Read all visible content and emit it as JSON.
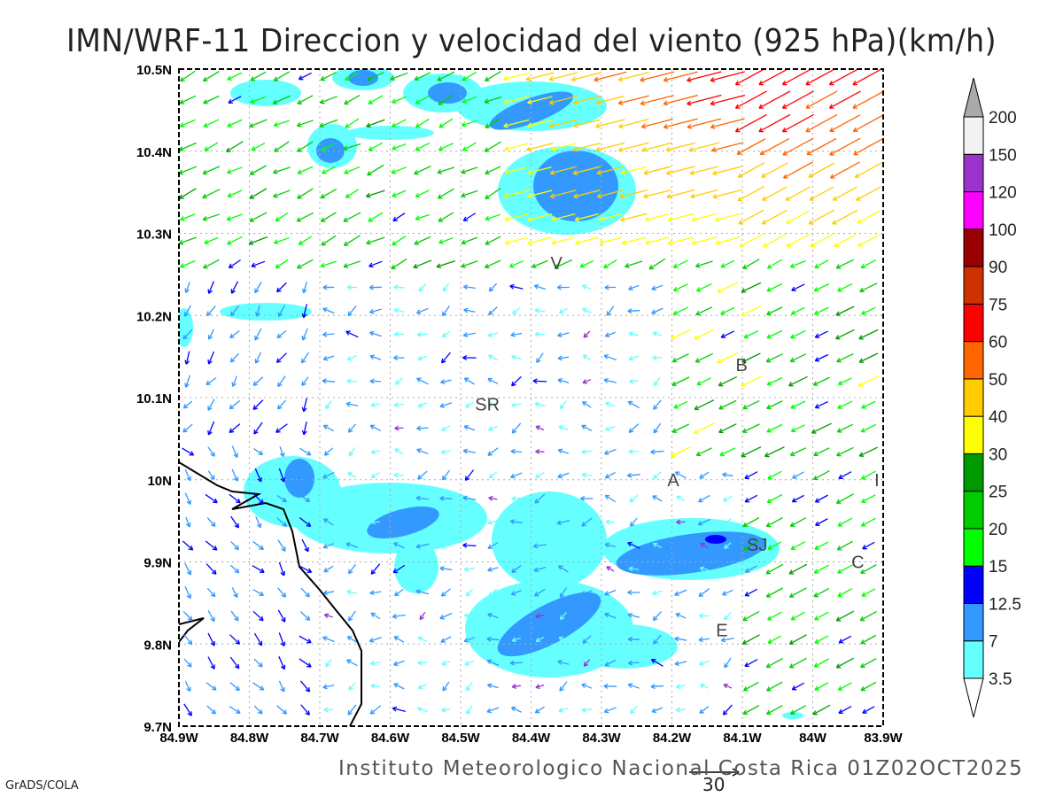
{
  "title": "IMN/WRF-11 Direccion y velocidad del viento (925 hPa)(km/h)",
  "footer": "Instituto Meteorologico Nacional Costa Rica 01Z02OCT2025",
  "credit": "GrADS/COLA",
  "reference_vector": {
    "label": "30",
    "value": 30
  },
  "chart_data": {
    "type": "vector-field-map",
    "units": "km/h",
    "level": "925 hPa",
    "x_axis": {
      "range": [
        -84.9,
        -83.9
      ],
      "ticks": [
        "84.9W",
        "84.8W",
        "84.7W",
        "84.6W",
        "84.5W",
        "84.4W",
        "84.3W",
        "84.2W",
        "84.1W",
        "84W",
        "83.9W"
      ]
    },
    "y_axis": {
      "range": [
        9.7,
        10.5
      ],
      "ticks": [
        "10.5N",
        "10.4N",
        "10.3N",
        "10.2N",
        "10.1N",
        "10N",
        "9.9N",
        "9.8N",
        "9.7N"
      ]
    },
    "grid": true,
    "colorbar": {
      "levels": [
        "3.5",
        "7",
        "12.5",
        "15",
        "20",
        "25",
        "30",
        "40",
        "50",
        "60",
        "75",
        "90",
        "100",
        "120",
        "150",
        "200"
      ],
      "colors": [
        "#ffffff",
        "#66ffff",
        "#3399ff",
        "#0000ff",
        "#00ff00",
        "#00cc00",
        "#009900",
        "#ffff00",
        "#ffcc00",
        "#ff6600",
        "#ff0000",
        "#cc3300",
        "#990000",
        "#ff00ff",
        "#9933cc",
        "#f2f2f2",
        "#aaaaaa"
      ]
    },
    "places": [
      {
        "label": "V",
        "lon": -84.364,
        "lat": 10.264
      },
      {
        "label": "B",
        "lon": -84.101,
        "lat": 10.14
      },
      {
        "label": "SR",
        "lon": -84.462,
        "lat": 10.092
      },
      {
        "label": "A",
        "lon": -84.198,
        "lat": 10.0
      },
      {
        "label": "I",
        "lon": -83.909,
        "lat": 10.0
      },
      {
        "label": "SJ",
        "lon": -84.079,
        "lat": 9.921
      },
      {
        "label": "C",
        "lon": -83.936,
        "lat": 9.9
      },
      {
        "label": "E",
        "lon": -84.129,
        "lat": 9.817
      }
    ]
  }
}
